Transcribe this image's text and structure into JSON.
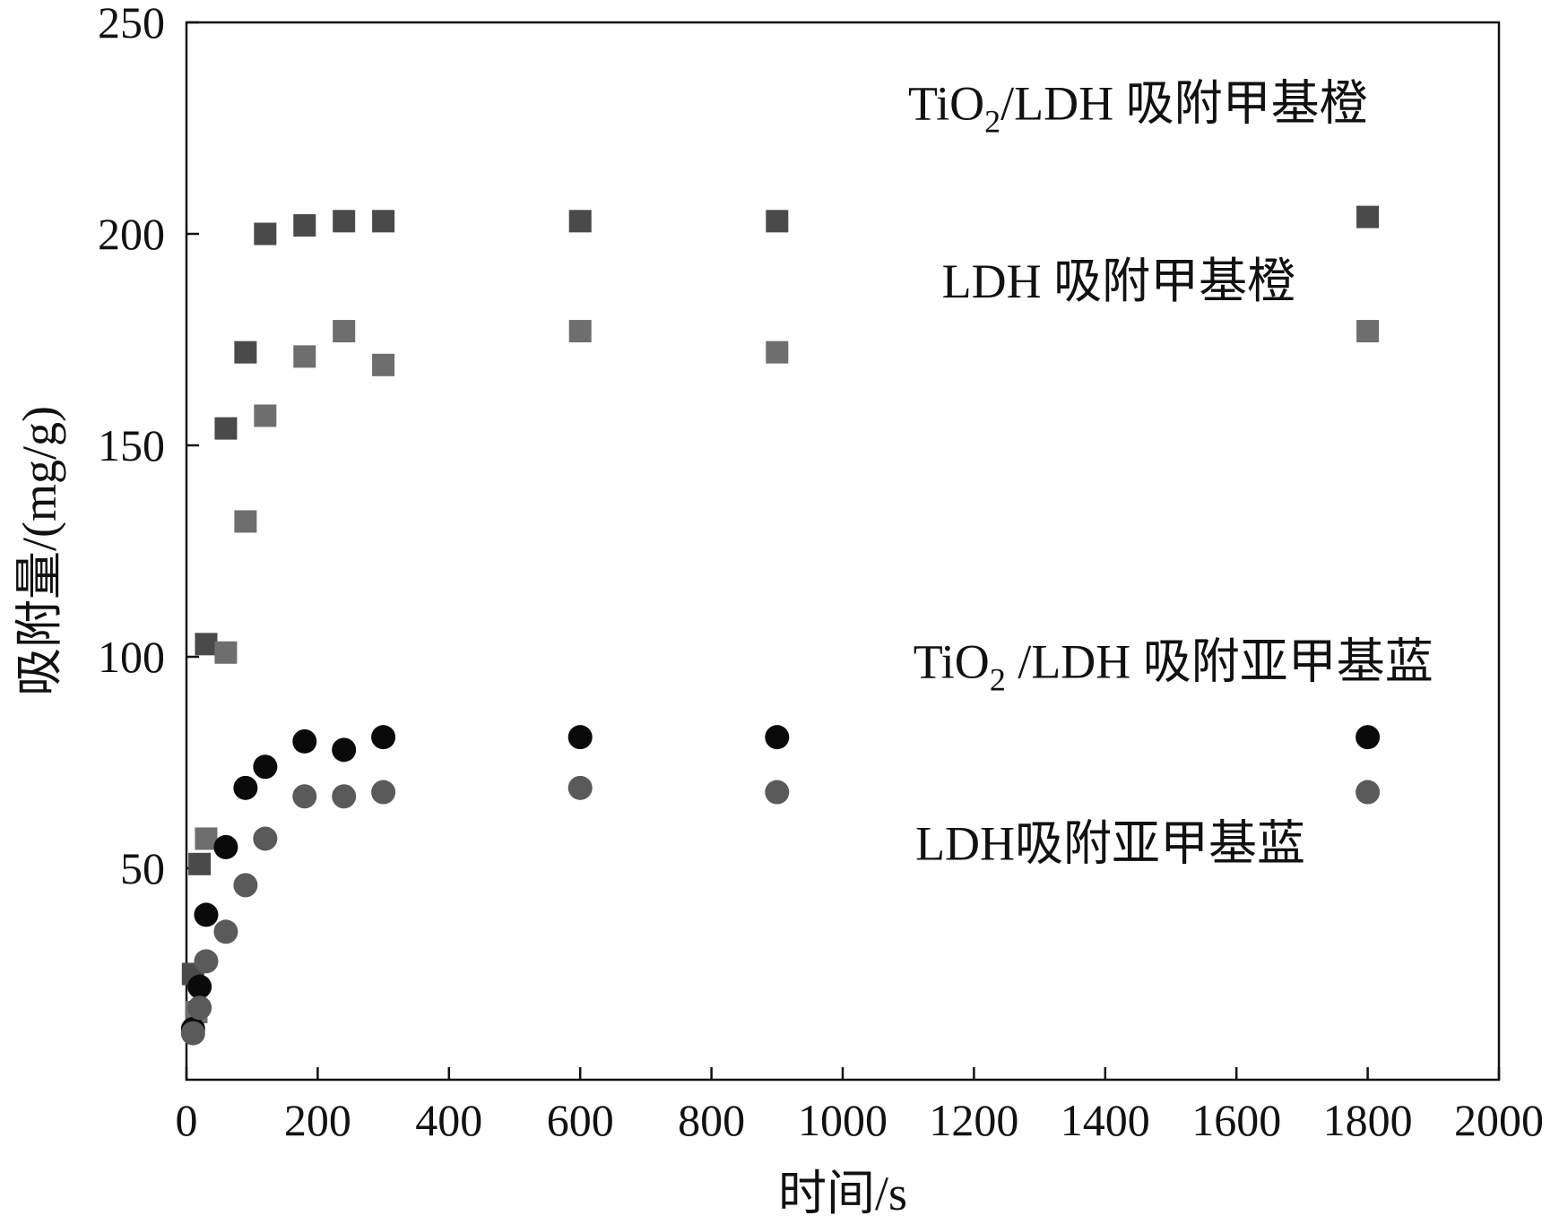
{
  "chart_data": {
    "type": "scatter",
    "xlabel": "时间/s",
    "ylabel": "吸附量/(mg/g)",
    "xlim": [
      0,
      2000
    ],
    "ylim": [
      0,
      250
    ],
    "x_ticks": [
      "0",
      "200",
      "400",
      "600",
      "800",
      "1000",
      "1200",
      "1400",
      "1600",
      "1800",
      "2000"
    ],
    "y_ticks": [
      "0",
      "50",
      "100",
      "150",
      "200",
      "250"
    ],
    "grid": false,
    "annotations": [
      {
        "text_main": "TiO",
        "sub": "2",
        "text_rest": "/LDH 吸附甲基橙",
        "x": 1800,
        "y": 227,
        "anchor": "end"
      },
      {
        "text_main": "LDH 吸附甲基橙",
        "sub": "",
        "text_rest": "",
        "x": 1690,
        "y": 185,
        "anchor": "end"
      },
      {
        "text_main": "TiO",
        "sub": "2",
        "text_rest": " /LDH 吸附亚甲基蓝",
        "x": 1900,
        "y": 95,
        "anchor": "end"
      },
      {
        "text_main": "LDH吸附亚甲基蓝",
        "sub": "",
        "text_rest": "",
        "x": 1705,
        "y": 52,
        "anchor": "end"
      }
    ],
    "series": [
      {
        "marker": "square",
        "color": "#4a4a4a",
        "x": [
          10,
          20,
          30,
          60,
          90,
          120,
          180,
          240,
          300,
          600,
          900,
          1800
        ],
        "y": [
          25,
          51,
          103,
          154,
          172,
          200,
          202,
          203,
          203,
          203,
          203,
          204
        ]
      },
      {
        "marker": "square",
        "color": "#6e6e6e",
        "x": [
          15,
          30,
          60,
          90,
          120,
          180,
          240,
          300,
          600,
          900,
          1800
        ],
        "y": [
          16,
          57,
          101,
          132,
          157,
          171,
          177,
          169,
          177,
          172,
          177
        ]
      },
      {
        "marker": "circle",
        "color": "#0a0a0a",
        "x": [
          10,
          20,
          30,
          60,
          90,
          120,
          180,
          240,
          300,
          600,
          900,
          1800
        ],
        "y": [
          12,
          22,
          39,
          55,
          69,
          74,
          80,
          78,
          81,
          81,
          81,
          81
        ]
      },
      {
        "marker": "circle",
        "color": "#5a5a5a",
        "x": [
          10,
          20,
          30,
          60,
          90,
          120,
          180,
          240,
          300,
          600,
          900,
          1800
        ],
        "y": [
          11,
          17,
          28,
          35,
          46,
          57,
          67,
          67,
          68,
          69,
          68,
          68
        ]
      }
    ]
  }
}
